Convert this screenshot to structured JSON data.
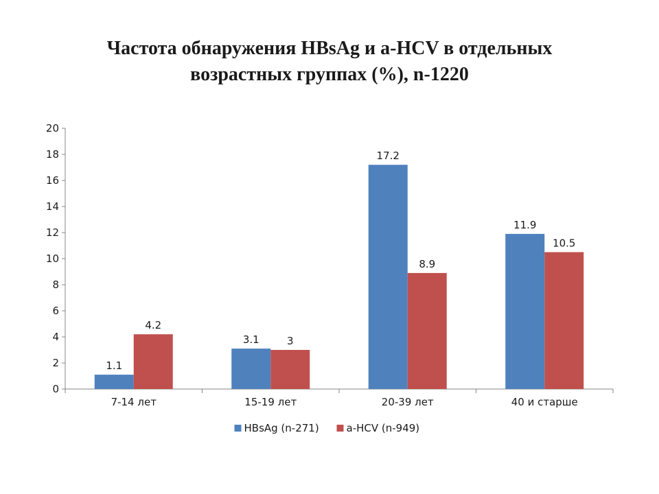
{
  "title_lines": [
    "Частота обнаружения HBsAg  и a-HCV в отдельных",
    "возрастных группах (%), n-1220"
  ],
  "chart_data": {
    "type": "bar",
    "categories": [
      "7-14 лет",
      "15-19 лет",
      "20-39 лет",
      "40 и старше"
    ],
    "series": [
      {
        "name": "HBsAg (n-271)",
        "color": "#4f81bd",
        "values": [
          1.1,
          3.1,
          17.2,
          11.9
        ],
        "labels": [
          "1.1",
          "3.1",
          "17.2",
          "11.9"
        ]
      },
      {
        "name": "a-HCV (n-949)",
        "color": "#c0504d",
        "values": [
          4.2,
          3,
          8.9,
          10.5
        ],
        "labels": [
          "4.2",
          "3",
          "8.9",
          "10.5"
        ]
      }
    ],
    "ylim": [
      0,
      20
    ],
    "yticks": [
      0,
      2,
      4,
      6,
      8,
      10,
      12,
      14,
      16,
      18,
      20
    ],
    "grid": false,
    "legend": "bottom"
  }
}
